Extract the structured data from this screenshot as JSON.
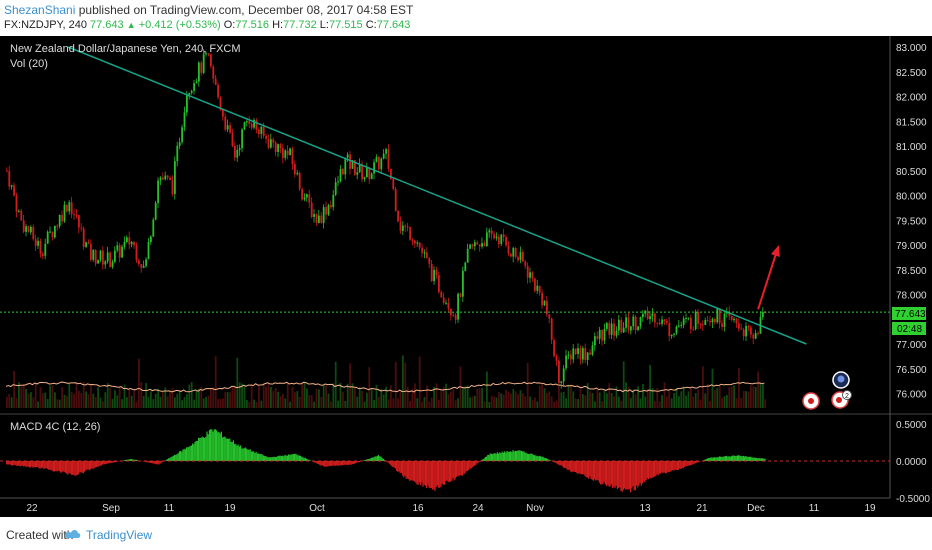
{
  "header": {
    "author": "ShezanShani",
    "published_text": "published on TradingView.com, December 08, 2017 04:58 EST",
    "symbol_line": "FX:NZDJPY, 240",
    "last": "77.643",
    "change": "+0.412 (+0.53%)",
    "o_label": "O:",
    "o_value": "77.516",
    "h_label": "H:",
    "h_value": "77.732",
    "l_label": "L:",
    "l_value": "77.515",
    "c_label": "C:",
    "c_value": "77.643"
  },
  "footer": {
    "created_with": "Created with",
    "brand": "TradingView"
  },
  "colors": {
    "background": "#000000",
    "up": "#26c12c",
    "down": "#d11d1d",
    "trendline": "#17a38a",
    "price_line": "#2fd02f",
    "vol_ma": "#f4b38a",
    "arrow": "#e8202a",
    "axis_text": "#dddddd"
  },
  "chart_data": [
    {
      "type": "line",
      "title": "New Zealand Dollar/Japanese Yen, 240, FXCM",
      "subtitle": "Vol (20)",
      "price_path_close": {
        "x": [
          "Aug 20",
          "Aug 22",
          "Aug 25",
          "Aug 29",
          "Sep 1",
          "Sep 4",
          "Sep 7",
          "Sep 9",
          "Sep 11",
          "Sep 13",
          "Sep 15",
          "Sep 18",
          "Sep 20",
          "Sep 22",
          "Sep 24",
          "Sep 26",
          "Sep 28",
          "Sep 30",
          "Oct 2",
          "Oct 4",
          "Oct 6",
          "Oct 8",
          "Oct 11",
          "Oct 14",
          "Oct 16",
          "Oct 18",
          "Oct 19",
          "Oct 21",
          "Oct 24",
          "Oct 26",
          "Oct 28",
          "Oct 30",
          "Nov 1",
          "Nov 3",
          "Nov 6",
          "Nov 8",
          "Nov 10",
          "Nov 12",
          "Nov 14",
          "Nov 16",
          "Nov 18",
          "Nov 20",
          "Nov 22",
          "Nov 24",
          "Nov 26",
          "Nov 28",
          "Nov 30",
          "Dec 2",
          "Dec 4",
          "Dec 6",
          "Dec 8"
        ],
        "y": [
          80.5,
          79.5,
          78.9,
          79.9,
          78.8,
          78.7,
          79.1,
          78.5,
          80.4,
          80.2,
          82.1,
          82.8,
          81.8,
          80.8,
          81.6,
          81.2,
          81.0,
          80.8,
          80.0,
          79.5,
          79.9,
          80.7,
          80.4,
          80.8,
          79.4,
          79.2,
          78.9,
          78.3,
          77.6,
          78.9,
          79.1,
          79.2,
          78.9,
          78.6,
          77.8,
          76.3,
          76.9,
          76.8,
          77.2,
          77.3,
          77.4,
          77.5,
          77.6,
          77.3,
          77.4,
          77.5,
          77.6,
          77.5,
          77.4,
          77.1,
          77.643
        ]
      },
      "last_price": "77.643",
      "last_price_countdown": "02:48",
      "trendline": {
        "from": [
          "Aug 29",
          83.0
        ],
        "to": [
          "Dec 14",
          77.0
        ]
      },
      "arrow": {
        "from": [
          "Dec 7",
          77.7
        ],
        "to": [
          "Dec 10",
          79.0
        ]
      },
      "y_ticks": [
        "83.000",
        "82.500",
        "82.000",
        "81.500",
        "81.000",
        "80.500",
        "80.000",
        "79.500",
        "79.000",
        "78.500",
        "78.000",
        "77.000",
        "76.500",
        "76.000"
      ],
      "ylim": [
        75.8,
        83.1
      ]
    },
    {
      "type": "bar",
      "title": "MACD 4C (12, 26)",
      "histogram_envelope": {
        "x": [
          "Aug 20",
          "Aug 25",
          "Aug 30",
          "Sep 3",
          "Sep 7",
          "Sep 11",
          "Sep 15",
          "Sep 19",
          "Sep 23",
          "Sep 27",
          "Oct 1",
          "Oct 5",
          "Oct 9",
          "Oct 13",
          "Oct 17",
          "Oct 21",
          "Oct 25",
          "Oct 29",
          "Nov 2",
          "Nov 6",
          "Nov 10",
          "Nov 14",
          "Nov 18",
          "Nov 22",
          "Nov 26",
          "Nov 30",
          "Dec 4",
          "Dec 8"
        ],
        "y": [
          -0.05,
          -0.1,
          -0.2,
          -0.05,
          0.03,
          -0.05,
          0.18,
          0.45,
          0.2,
          0.05,
          0.1,
          -0.08,
          -0.05,
          0.08,
          -0.25,
          -0.4,
          -0.2,
          0.1,
          0.15,
          0.05,
          -0.15,
          -0.3,
          -0.45,
          -0.2,
          -0.1,
          0.05,
          0.08,
          0.03
        ]
      },
      "y_ticks": [
        "0.5000",
        "0.0000",
        "-0.5000"
      ],
      "ylim": [
        -0.55,
        0.55
      ]
    }
  ],
  "x_axis": {
    "tick_labels": [
      "22",
      "Sep",
      "11",
      "19",
      "Oct",
      "16",
      "24",
      "Nov",
      "13",
      "21",
      "Dec",
      "11",
      "19"
    ]
  }
}
